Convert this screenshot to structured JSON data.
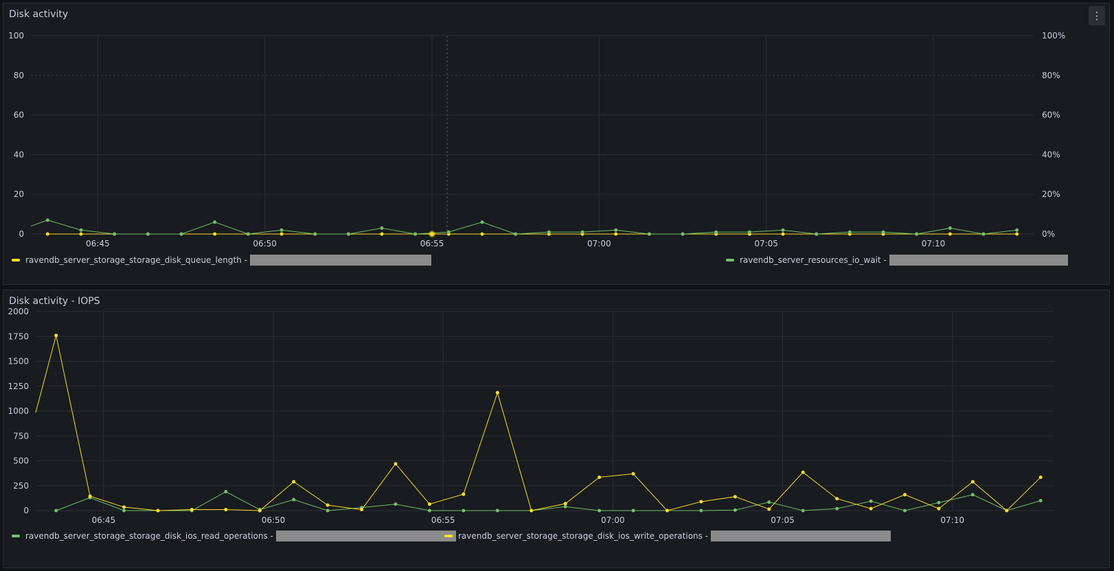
{
  "colors": {
    "yellow": "#fade2a",
    "green": "#73bf69",
    "grid": "#2b2d33",
    "text": "#ccccdc"
  },
  "panels": {
    "disk_activity": {
      "title": "Disk activity",
      "menu_icon": "kebab-menu-icon"
    },
    "iops": {
      "title": "Disk activity - IOPS"
    }
  },
  "legends": {
    "queue_length": "ravendb_server_storage_storage_disk_queue_length -",
    "io_wait": "ravendb_server_resources_io_wait -",
    "read_ops": "ravendb_server_storage_storage_disk_ios_read_operations -",
    "write_ops": "ravendb_server_storage_storage_disk_ios_write_operations -"
  },
  "chart_data": [
    {
      "type": "line",
      "title": "Disk activity",
      "x_start": "06:43:00",
      "x_range_minutes": [
        0,
        30
      ],
      "xticks": [
        "06:45",
        "06:50",
        "06:55",
        "07:00",
        "07:05",
        "07:10"
      ],
      "xtick_minutes": [
        2,
        7,
        12,
        17,
        22,
        27
      ],
      "ylim": [
        0,
        100
      ],
      "yticks": [
        "0",
        "20",
        "40",
        "60",
        "80",
        "100"
      ],
      "ylim_right": [
        0,
        100
      ],
      "yticks_right": [
        "0%",
        "20%",
        "40%",
        "60%",
        "80%",
        "100%"
      ],
      "hover_marker_minute": 12,
      "series": [
        {
          "name": "ravendb_server_storage_storage_disk_queue_length",
          "color": "#fade2a",
          "x": [
            0.5,
            1.5,
            2.5,
            3.5,
            4.5,
            5.5,
            6.5,
            7.5,
            8.5,
            9.5,
            10.5,
            11.5,
            12.5,
            13.5,
            14.5,
            15.5,
            16.5,
            17.5,
            18.5,
            19.5,
            20.5,
            21.5,
            22.5,
            23.5,
            24.5,
            25.5,
            26.5,
            27.5,
            28.5,
            29.5
          ],
          "values": [
            0,
            0,
            0,
            0,
            0,
            0,
            0,
            0,
            0,
            0,
            0,
            0,
            0,
            0,
            0,
            0,
            0,
            0,
            0,
            0,
            0,
            0,
            0,
            0,
            0,
            0,
            0,
            0,
            0,
            0
          ]
        },
        {
          "name": "ravendb_server_resources_io_wait",
          "color": "#73bf69",
          "axis": "right",
          "x": [
            -0.5,
            0.5,
            1.5,
            2.5,
            3.5,
            4.5,
            5.5,
            6.5,
            7.5,
            8.5,
            9.5,
            10.5,
            11.5,
            12.5,
            13.5,
            14.5,
            15.5,
            16.5,
            17.5,
            18.5,
            19.5,
            20.5,
            21.5,
            22.5,
            23.5,
            24.5,
            25.5,
            26.5,
            27.5,
            28.5,
            29.5
          ],
          "values": [
            4,
            7,
            2,
            0,
            0,
            0,
            6,
            0,
            2,
            0,
            0,
            3,
            0,
            1,
            6,
            0,
            1,
            1,
            2,
            0,
            0,
            1,
            1,
            2,
            0,
            1,
            1,
            0,
            3,
            0,
            2
          ]
        }
      ]
    },
    {
      "type": "line",
      "title": "Disk activity - IOPS",
      "x_range_minutes": [
        0,
        30
      ],
      "xticks": [
        "06:45",
        "06:50",
        "06:55",
        "07:00",
        "07:05",
        "07:10"
      ],
      "xtick_minutes": [
        2,
        7,
        12,
        17,
        22,
        27
      ],
      "ylim": [
        0,
        2000
      ],
      "yticks": [
        "0",
        "250",
        "500",
        "750",
        "1000",
        "1250",
        "1500",
        "1750",
        "2000"
      ],
      "series": [
        {
          "name": "ravendb_server_storage_storage_disk_ios_read_operations",
          "color": "#73bf69",
          "x": [
            0.6,
            1.6,
            2.6,
            3.6,
            4.6,
            5.6,
            6.6,
            7.6,
            8.6,
            9.6,
            10.6,
            11.6,
            12.6,
            13.6,
            14.6,
            15.6,
            16.6,
            17.6,
            18.6,
            19.6,
            20.6,
            21.6,
            22.6,
            23.6,
            24.6,
            25.6,
            26.6,
            27.6,
            28.6,
            29.6
          ],
          "values": [
            0,
            130,
            0,
            0,
            0,
            190,
            10,
            110,
            0,
            30,
            65,
            0,
            0,
            0,
            0,
            40,
            0,
            0,
            0,
            0,
            5,
            85,
            0,
            20,
            95,
            0,
            80,
            160,
            0,
            100
          ]
        },
        {
          "name": "ravendb_server_storage_storage_disk_ios_write_operations",
          "color": "#fade2a",
          "x": [
            0,
            0.6,
            1.6,
            2.6,
            3.6,
            4.6,
            5.6,
            6.6,
            7.6,
            8.6,
            9.6,
            10.6,
            11.6,
            12.6,
            13.6,
            14.6,
            15.6,
            16.6,
            17.6,
            18.6,
            19.6,
            20.6,
            21.6,
            22.6,
            23.6,
            24.6,
            25.6,
            26.6,
            27.6,
            28.6,
            29.6
          ],
          "values": [
            985,
            1760,
            145,
            35,
            0,
            10,
            10,
            0,
            290,
            55,
            10,
            470,
            65,
            165,
            1185,
            0,
            70,
            335,
            370,
            0,
            90,
            140,
            15,
            385,
            120,
            20,
            160,
            20,
            290,
            0,
            335
          ]
        }
      ]
    }
  ]
}
